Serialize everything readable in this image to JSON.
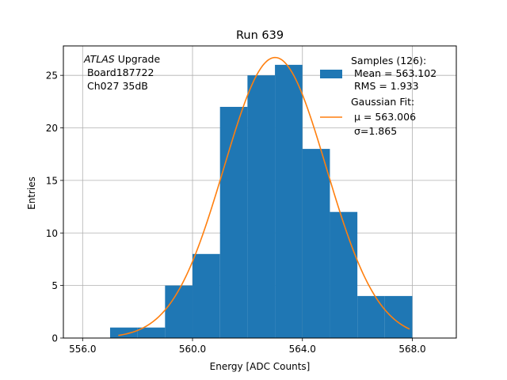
{
  "chart_data": {
    "type": "bar",
    "title": "Run 639",
    "xlabel": "Energy [ADC Counts]",
    "ylabel": "Entries",
    "xlim": [
      555.3,
      569.6
    ],
    "ylim": [
      0,
      27.8
    ],
    "xticks": [
      556,
      560,
      564,
      568
    ],
    "xtick_labels": [
      "556.0",
      "560.0",
      "564.0",
      "568.0"
    ],
    "yticks": [
      0,
      5,
      10,
      15,
      20,
      25
    ],
    "ytick_labels": [
      "0",
      "5",
      "10",
      "15",
      "20",
      "25"
    ],
    "grid": true,
    "colors": {
      "histogram": "#1f77b4",
      "fit": "#ff7f0e",
      "grid": "#b0b0b0"
    },
    "annotation": {
      "line1_italic": "ATLAS",
      "line1_rest": " Upgrade",
      "line2": " Board187722",
      "line3": " Ch027 35dB"
    },
    "legend": {
      "placement": "upper right",
      "histogram_lines": [
        "Samples (126):",
        " Mean = 563.102",
        " RMS = 1.933"
      ],
      "fit_lines": [
        "Gaussian Fit:",
        " μ = 563.006",
        " σ=1.865"
      ]
    },
    "histogram": {
      "bin_edges": [
        557,
        558,
        559,
        560,
        561,
        562,
        563,
        564,
        565,
        566,
        567,
        568
      ],
      "counts": [
        1,
        1,
        5,
        8,
        22,
        25,
        26,
        18,
        12,
        4,
        4
      ]
    },
    "fit": {
      "mu": 563.006,
      "sigma": 1.865,
      "amplitude": 26.7,
      "x_range": [
        557.3,
        567.9
      ]
    }
  }
}
